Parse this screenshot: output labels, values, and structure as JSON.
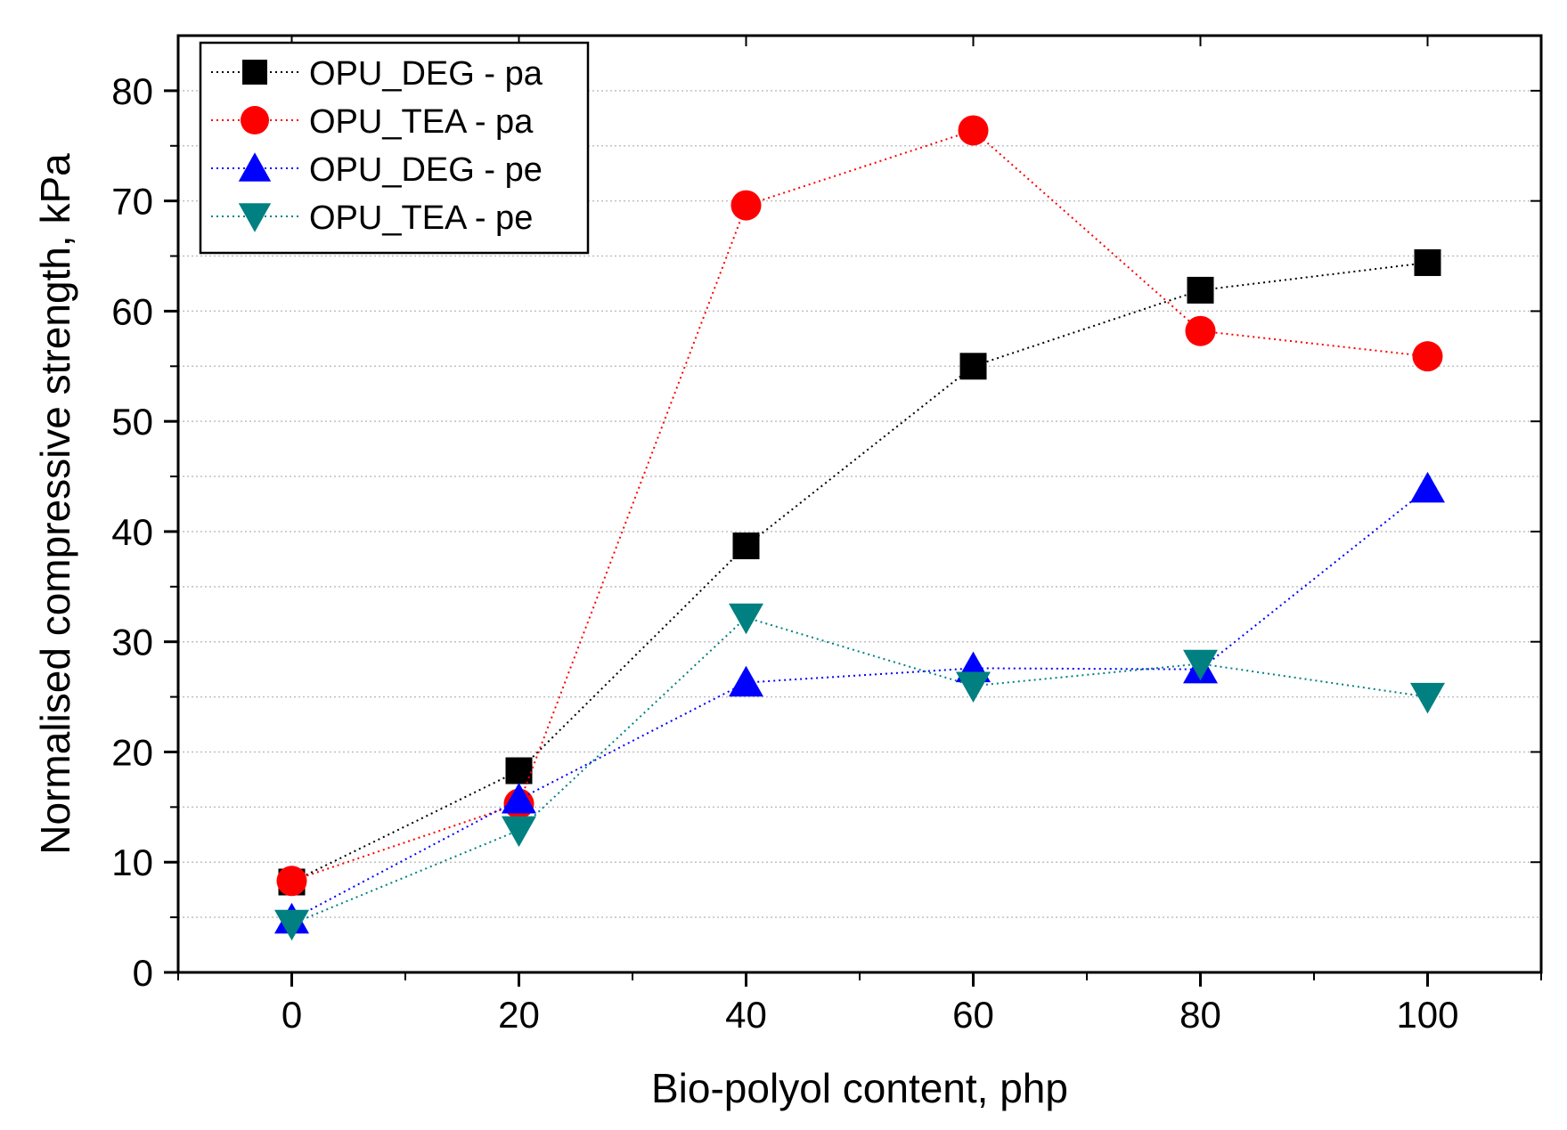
{
  "chart_data": {
    "type": "line",
    "xlabel": "Bio-polyol content, php",
    "ylabel": "Normalised compressive strength, kPa",
    "xlim": [
      -10,
      110
    ],
    "ylim": [
      0,
      85
    ],
    "xticks": [
      0,
      20,
      40,
      60,
      80,
      100
    ],
    "yticks": [
      0,
      10,
      20,
      30,
      40,
      50,
      60,
      70,
      80
    ],
    "grid": "horizontal dotted",
    "legend_position": "top-left",
    "x": [
      0,
      20,
      40,
      60,
      80,
      100
    ],
    "series": [
      {
        "name": "OPU_DEG - pa",
        "marker": "square",
        "color": "#000000",
        "values": [
          8.2,
          18.3,
          38.7,
          55.0,
          61.9,
          64.4
        ]
      },
      {
        "name": "OPU_TEA - pa",
        "marker": "circle",
        "color": "#ff0000",
        "values": [
          8.3,
          15.3,
          69.6,
          76.4,
          58.2,
          55.9
        ]
      },
      {
        "name": "OPU_DEG - pe",
        "marker": "triangle-up",
        "color": "#0000ff",
        "values": [
          4.8,
          15.7,
          26.3,
          27.6,
          27.5,
          43.9
        ]
      },
      {
        "name": "OPU_TEA - pe",
        "marker": "triangle-down",
        "color": "#008080",
        "values": [
          4.4,
          12.9,
          32.2,
          26.0,
          28.0,
          25.0
        ]
      }
    ]
  }
}
